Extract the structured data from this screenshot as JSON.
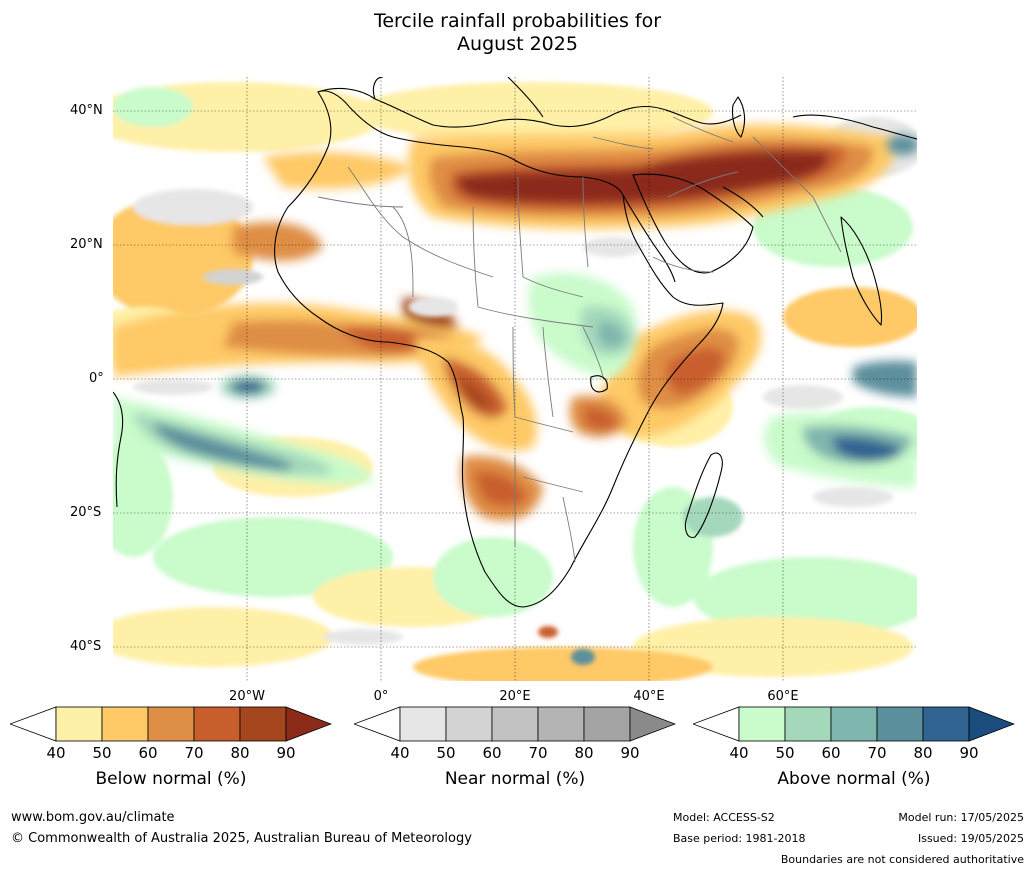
{
  "title": {
    "line1": "Tercile rainfall probabilities for",
    "line2": "August 2025"
  },
  "lat_labels": [
    "40°N",
    "20°N",
    "0°",
    "20°S",
    "40°S"
  ],
  "lon_labels": [
    "20°W",
    "0°",
    "20°E",
    "40°E",
    "60°E"
  ],
  "colorbars": [
    {
      "name": "Below normal (%)",
      "ticks": [
        "40",
        "50",
        "60",
        "70",
        "80",
        "90"
      ],
      "colors": [
        "#fff0a8",
        "#fec966",
        "#df8e45",
        "#c95e2d",
        "#a5461f",
        "#8b2b1a"
      ]
    },
    {
      "name": "Near normal (%)",
      "ticks": [
        "40",
        "50",
        "60",
        "70",
        "80",
        "90"
      ],
      "colors": [
        "#e6e6e6",
        "#d3d3d3",
        "#c2c2c2",
        "#b4b4b4",
        "#a4a4a4",
        "#8a8a8a"
      ]
    },
    {
      "name": "Above normal (%)",
      "ticks": [
        "40",
        "50",
        "60",
        "70",
        "80",
        "90"
      ],
      "colors": [
        "#c9fbcb",
        "#a4d8bb",
        "#7fb6ad",
        "#5d909d",
        "#326492",
        "#1b4c7e"
      ]
    }
  ],
  "footer": {
    "website": "www.bom.gov.au/climate",
    "copyright": "© Commonwealth of Australia 2025, Australian Bureau of Meteorology",
    "model": "Model: ACCESS-S2",
    "base_period": "Base period: 1981-2018",
    "model_run": "Model run: 17/05/2025",
    "issued": "Issued: 19/05/2025",
    "disclaimer": "Boundaries are not considered authoritative"
  }
}
